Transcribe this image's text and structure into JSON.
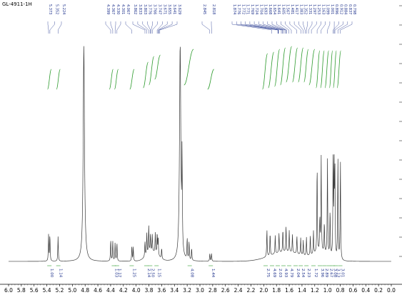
{
  "title": "GL-4911-1H",
  "colors": {
    "spectrum": "#3a3a3a",
    "integral": "#2e9b2e",
    "label": "#1a2e8a",
    "axis": "#000000"
  },
  "chart_data": {
    "type": "line",
    "title": "GL-4911-1H",
    "xlabel": "",
    "ylabel": "",
    "x_reversed": true,
    "xlim": [
      6.0,
      0.0
    ],
    "ylim": [
      0,
      1
    ],
    "grid": false,
    "x_tick_labels": [
      "6.0",
      "5.8",
      "5.6",
      "5.4",
      "5.2",
      "5.0",
      "4.8",
      "4.6",
      "4.4",
      "4.2",
      "4.0",
      "3.8",
      "3.6",
      "3.4",
      "3.2",
      "3.0",
      "2.8",
      "2.6",
      "2.4",
      "2.2",
      "2.0",
      "1.8",
      "1.6",
      "1.4",
      "1.2",
      "1.0",
      "0.8",
      "0.6",
      "0.4",
      "0.2",
      "0.0"
    ],
    "peak_labels": [
      "5.373",
      "5.352",
      "5.224",
      "4.399",
      "4.367",
      "4.330",
      "4.301",
      "4.067",
      "3.862",
      "3.833",
      "3.803",
      "3.776",
      "3.766",
      "3.747",
      "3.671",
      "3.655",
      "3.641",
      "3.629",
      "2.845",
      "2.818",
      "1.874",
      "1.776",
      "1.772",
      "1.771",
      "1.769",
      "1.724",
      "1.704",
      "1.693",
      "1.668",
      "1.654",
      "1.641",
      "1.605",
      "1.567",
      "1.481",
      "1.417",
      "1.383",
      "1.352",
      "1.331",
      "1.297",
      "1.253",
      "1.163",
      "1.099",
      "1.001",
      "0.896",
      "0.912",
      "0.884",
      "0.837",
      "0.798"
    ],
    "integrals": [
      {
        "x": 5.36,
        "value": "1.00"
      },
      {
        "x": 5.22,
        "value": "1.14"
      },
      {
        "x": 4.35,
        "value": "1.03"
      },
      {
        "x": 4.3,
        "value": "1.17"
      },
      {
        "x": 4.07,
        "value": "1.25"
      },
      {
        "x": 3.84,
        "value": "2.14"
      },
      {
        "x": 3.78,
        "value": "2.50"
      },
      {
        "x": 3.68,
        "value": "1.15"
      },
      {
        "x": 3.16,
        "value": "4.08"
      },
      {
        "x": 2.83,
        "value": "1.44"
      },
      {
        "x": 1.97,
        "value": "2.75"
      },
      {
        "x": 1.87,
        "value": "4.69"
      },
      {
        "x": 1.78,
        "value": "2.03"
      },
      {
        "x": 1.69,
        "value": "4.93"
      },
      {
        "x": 1.6,
        "value": "4.79"
      },
      {
        "x": 1.5,
        "value": "2.04"
      },
      {
        "x": 1.42,
        "value": "2.54"
      },
      {
        "x": 1.33,
        "value": "2.23"
      },
      {
        "x": 1.22,
        "value": "1.72"
      },
      {
        "x": 1.12,
        "value": "3.96"
      },
      {
        "x": 1.05,
        "value": "2.89"
      },
      {
        "x": 0.98,
        "value": "2.67"
      },
      {
        "x": 0.92,
        "value": "3.08"
      },
      {
        "x": 0.87,
        "value": "3.13"
      },
      {
        "x": 0.8,
        "value": "3.01"
      }
    ],
    "peaks": [
      {
        "x": 5.373,
        "h": 0.17
      },
      {
        "x": 5.352,
        "h": 0.17
      },
      {
        "x": 5.224,
        "h": 0.16
      },
      {
        "x": 4.82,
        "h": 1.4
      },
      {
        "x": 4.399,
        "h": 0.14
      },
      {
        "x": 4.367,
        "h": 0.13
      },
      {
        "x": 4.33,
        "h": 0.12
      },
      {
        "x": 4.301,
        "h": 0.12
      },
      {
        "x": 4.067,
        "h": 0.1
      },
      {
        "x": 4.045,
        "h": 0.09
      },
      {
        "x": 3.862,
        "h": 0.1
      },
      {
        "x": 3.833,
        "h": 0.14
      },
      {
        "x": 3.803,
        "h": 0.18
      },
      {
        "x": 3.776,
        "h": 0.12
      },
      {
        "x": 3.747,
        "h": 0.11
      },
      {
        "x": 3.7,
        "h": 0.13
      },
      {
        "x": 3.671,
        "h": 0.14
      },
      {
        "x": 3.655,
        "h": 0.12
      },
      {
        "x": 3.6,
        "h": 0.07
      },
      {
        "x": 3.31,
        "h": 1.4
      },
      {
        "x": 3.28,
        "h": 0.6
      },
      {
        "x": 3.2,
        "h": 0.14
      },
      {
        "x": 3.17,
        "h": 0.12
      },
      {
        "x": 3.13,
        "h": 0.08
      },
      {
        "x": 2.845,
        "h": 0.05
      },
      {
        "x": 2.818,
        "h": 0.05
      },
      {
        "x": 1.95,
        "h": 0.18
      },
      {
        "x": 1.9,
        "h": 0.15
      },
      {
        "x": 1.82,
        "h": 0.12
      },
      {
        "x": 1.76,
        "h": 0.13
      },
      {
        "x": 1.7,
        "h": 0.15
      },
      {
        "x": 1.65,
        "h": 0.17
      },
      {
        "x": 1.6,
        "h": 0.14
      },
      {
        "x": 1.55,
        "h": 0.12
      },
      {
        "x": 1.48,
        "h": 0.12
      },
      {
        "x": 1.42,
        "h": 0.11
      },
      {
        "x": 1.38,
        "h": 0.1
      },
      {
        "x": 1.33,
        "h": 0.12
      },
      {
        "x": 1.27,
        "h": 0.13
      },
      {
        "x": 1.22,
        "h": 0.15
      },
      {
        "x": 1.163,
        "h": 0.58
      },
      {
        "x": 1.12,
        "h": 0.22
      },
      {
        "x": 1.099,
        "h": 0.62
      },
      {
        "x": 1.05,
        "h": 0.2
      },
      {
        "x": 1.001,
        "h": 0.62
      },
      {
        "x": 0.96,
        "h": 0.3
      },
      {
        "x": 0.912,
        "h": 0.66
      },
      {
        "x": 0.896,
        "h": 0.58
      },
      {
        "x": 0.884,
        "h": 0.55
      },
      {
        "x": 0.837,
        "h": 0.66
      },
      {
        "x": 0.798,
        "h": 0.66
      }
    ],
    "integral_traces": [
      {
        "from": 5.39,
        "to": 5.33,
        "y0": 0.15,
        "y1": 0.19
      },
      {
        "from": 5.25,
        "to": 5.19,
        "y0": 0.15,
        "y1": 0.19
      },
      {
        "from": 4.42,
        "to": 4.36,
        "y0": 0.15,
        "y1": 0.19
      },
      {
        "from": 4.34,
        "to": 4.28,
        "y0": 0.15,
        "y1": 0.19
      },
      {
        "from": 4.1,
        "to": 4.03,
        "y0": 0.15,
        "y1": 0.19
      },
      {
        "from": 3.89,
        "to": 3.81,
        "y0": 0.16,
        "y1": 0.24
      },
      {
        "from": 3.8,
        "to": 3.72,
        "y0": 0.18,
        "y1": 0.28
      },
      {
        "from": 3.71,
        "to": 3.62,
        "y0": 0.22,
        "y1": 0.29
      },
      {
        "from": 3.25,
        "to": 3.1,
        "y0": 0.18,
        "y1": 0.33
      },
      {
        "from": 2.88,
        "to": 2.78,
        "y0": 0.15,
        "y1": 0.19
      },
      {
        "from": 2.02,
        "to": 1.94,
        "y0": 0.15,
        "y1": 0.3
      },
      {
        "from": 1.93,
        "to": 1.84,
        "y0": 0.16,
        "y1": 0.31
      },
      {
        "from": 1.83,
        "to": 1.75,
        "y0": 0.17,
        "y1": 0.33
      },
      {
        "from": 1.74,
        "to": 1.66,
        "y0": 0.18,
        "y1": 0.34
      },
      {
        "from": 1.65,
        "to": 1.56,
        "y0": 0.2,
        "y1": 0.35
      },
      {
        "from": 1.55,
        "to": 1.47,
        "y0": 0.2,
        "y1": 0.34
      },
      {
        "from": 1.46,
        "to": 1.38,
        "y0": 0.2,
        "y1": 0.34
      },
      {
        "from": 1.37,
        "to": 1.3,
        "y0": 0.2,
        "y1": 0.33
      },
      {
        "from": 1.29,
        "to": 1.2,
        "y0": 0.18,
        "y1": 0.33
      },
      {
        "from": 1.18,
        "to": 1.12,
        "y0": 0.16,
        "y1": 0.32
      },
      {
        "from": 1.11,
        "to": 1.05,
        "y0": 0.16,
        "y1": 0.32
      },
      {
        "from": 1.04,
        "to": 0.98,
        "y0": 0.16,
        "y1": 0.32
      },
      {
        "from": 0.97,
        "to": 0.92,
        "y0": 0.16,
        "y1": 0.32
      },
      {
        "from": 0.91,
        "to": 0.86,
        "y0": 0.16,
        "y1": 0.32
      },
      {
        "from": 0.85,
        "to": 0.79,
        "y0": 0.16,
        "y1": 0.32
      }
    ]
  }
}
